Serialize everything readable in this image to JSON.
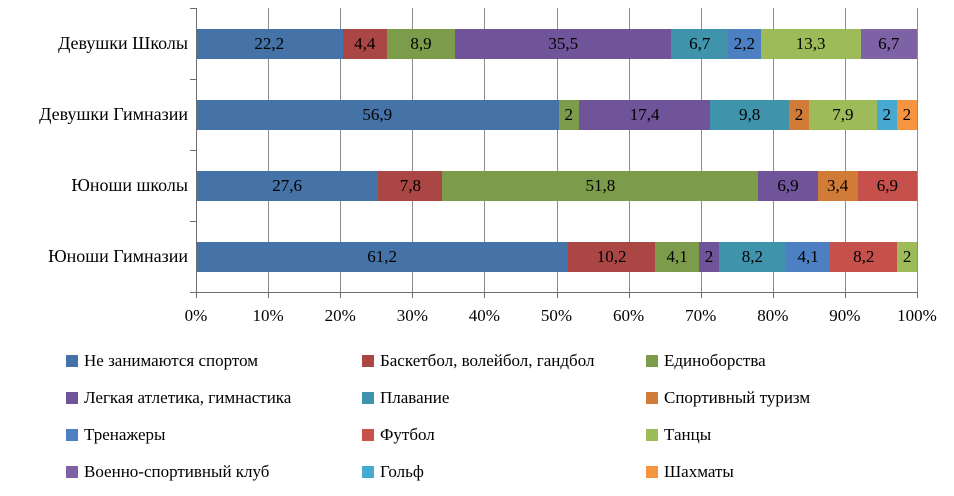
{
  "chart_data": {
    "type": "bar",
    "orientation": "horizontal",
    "stacked": true,
    "normalized_100_percent": true,
    "title": "",
    "xlabel": "",
    "ylabel": "",
    "grid": true,
    "legend_position": "bottom",
    "legend_columns": 3,
    "decimal_separator": ",",
    "categories": [
      "Девушки Школы",
      "Девушки Гимназии",
      "Юноши школы",
      "Юноши Гимназии"
    ],
    "x_axis": {
      "min": 0,
      "max": 100,
      "tick_step": 10,
      "ticks": [
        "0%",
        "10%",
        "20%",
        "30%",
        "40%",
        "50%",
        "60%",
        "70%",
        "80%",
        "90%",
        "100%"
      ]
    },
    "series": [
      {
        "name": "Не занимаются спортом",
        "color": "#4573A7",
        "values": [
          22.2,
          56.9,
          27.6,
          61.2
        ]
      },
      {
        "name": "Баскетбол, волейбол, гандбол",
        "color": "#AA4643",
        "values": [
          4.4,
          0,
          7.8,
          10.2
        ]
      },
      {
        "name": "Единоборства",
        "color": "#7D9C4B",
        "values": [
          8.9,
          2,
          51.8,
          4.1
        ]
      },
      {
        "name": "Легкая атлетика, гимнастика",
        "color": "#6F5499",
        "values": [
          35.5,
          17.4,
          6.9,
          2
        ]
      },
      {
        "name": "Плавание",
        "color": "#3F94AC",
        "values": [
          6.7,
          9.8,
          0,
          8.2
        ]
      },
      {
        "name": "Спортивный туризм",
        "color": "#D07B38",
        "values": [
          0,
          2,
          3.4,
          0
        ]
      },
      {
        "name": "Тренажеры",
        "color": "#4C80C2",
        "values": [
          2.2,
          0,
          0,
          4.1
        ]
      },
      {
        "name": "Футбол",
        "color": "#C5504C",
        "values": [
          0,
          0,
          6.9,
          8.2
        ]
      },
      {
        "name": "Танцы",
        "color": "#9EBB59",
        "values": [
          13.3,
          7.9,
          0,
          2
        ]
      },
      {
        "name": "Военно-спортивный клуб",
        "color": "#7D63A5",
        "values": [
          6.7,
          0,
          0,
          0
        ]
      },
      {
        "name": "Гольф",
        "color": "#46A9D1",
        "values": [
          0,
          2,
          0,
          0
        ]
      },
      {
        "name": "Шахматы",
        "color": "#F6943F",
        "values": [
          0,
          2,
          0,
          0
        ]
      }
    ]
  }
}
